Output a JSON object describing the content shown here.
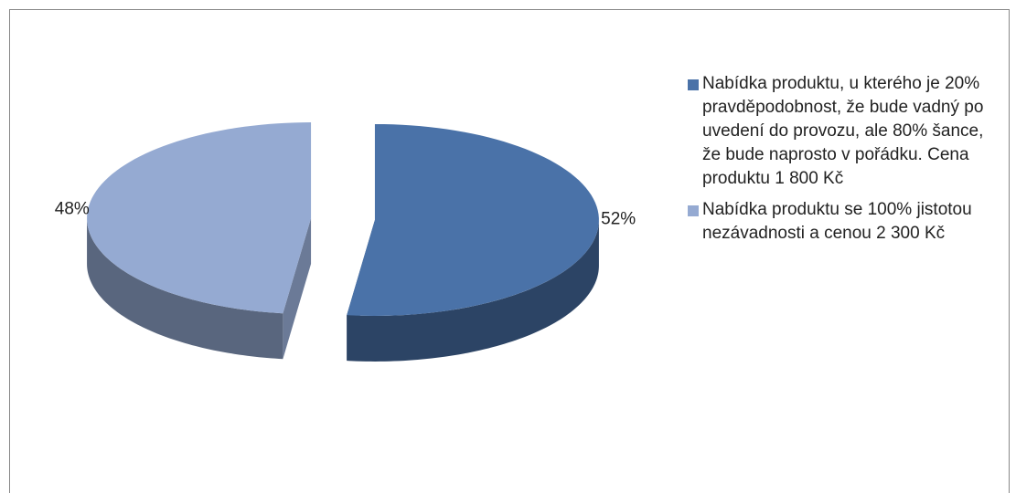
{
  "chart_data": {
    "type": "pie",
    "categories": [
      "Nabídka produktu, u kterého je 20% pravděpodobnost, že bude vadný po uvedení do provozu, ale 80% šance, že bude naprosto v pořádku. Cena produktu 1 800 Kč",
      "Nabídka produktu se 100% jistotou nezávadnosti a cenou 2 300 Kč"
    ],
    "values": [
      52,
      48
    ],
    "value_labels": [
      "52%",
      "48%"
    ],
    "colors": [
      "#4a72a8",
      "#95aad2"
    ],
    "legend": "right"
  }
}
